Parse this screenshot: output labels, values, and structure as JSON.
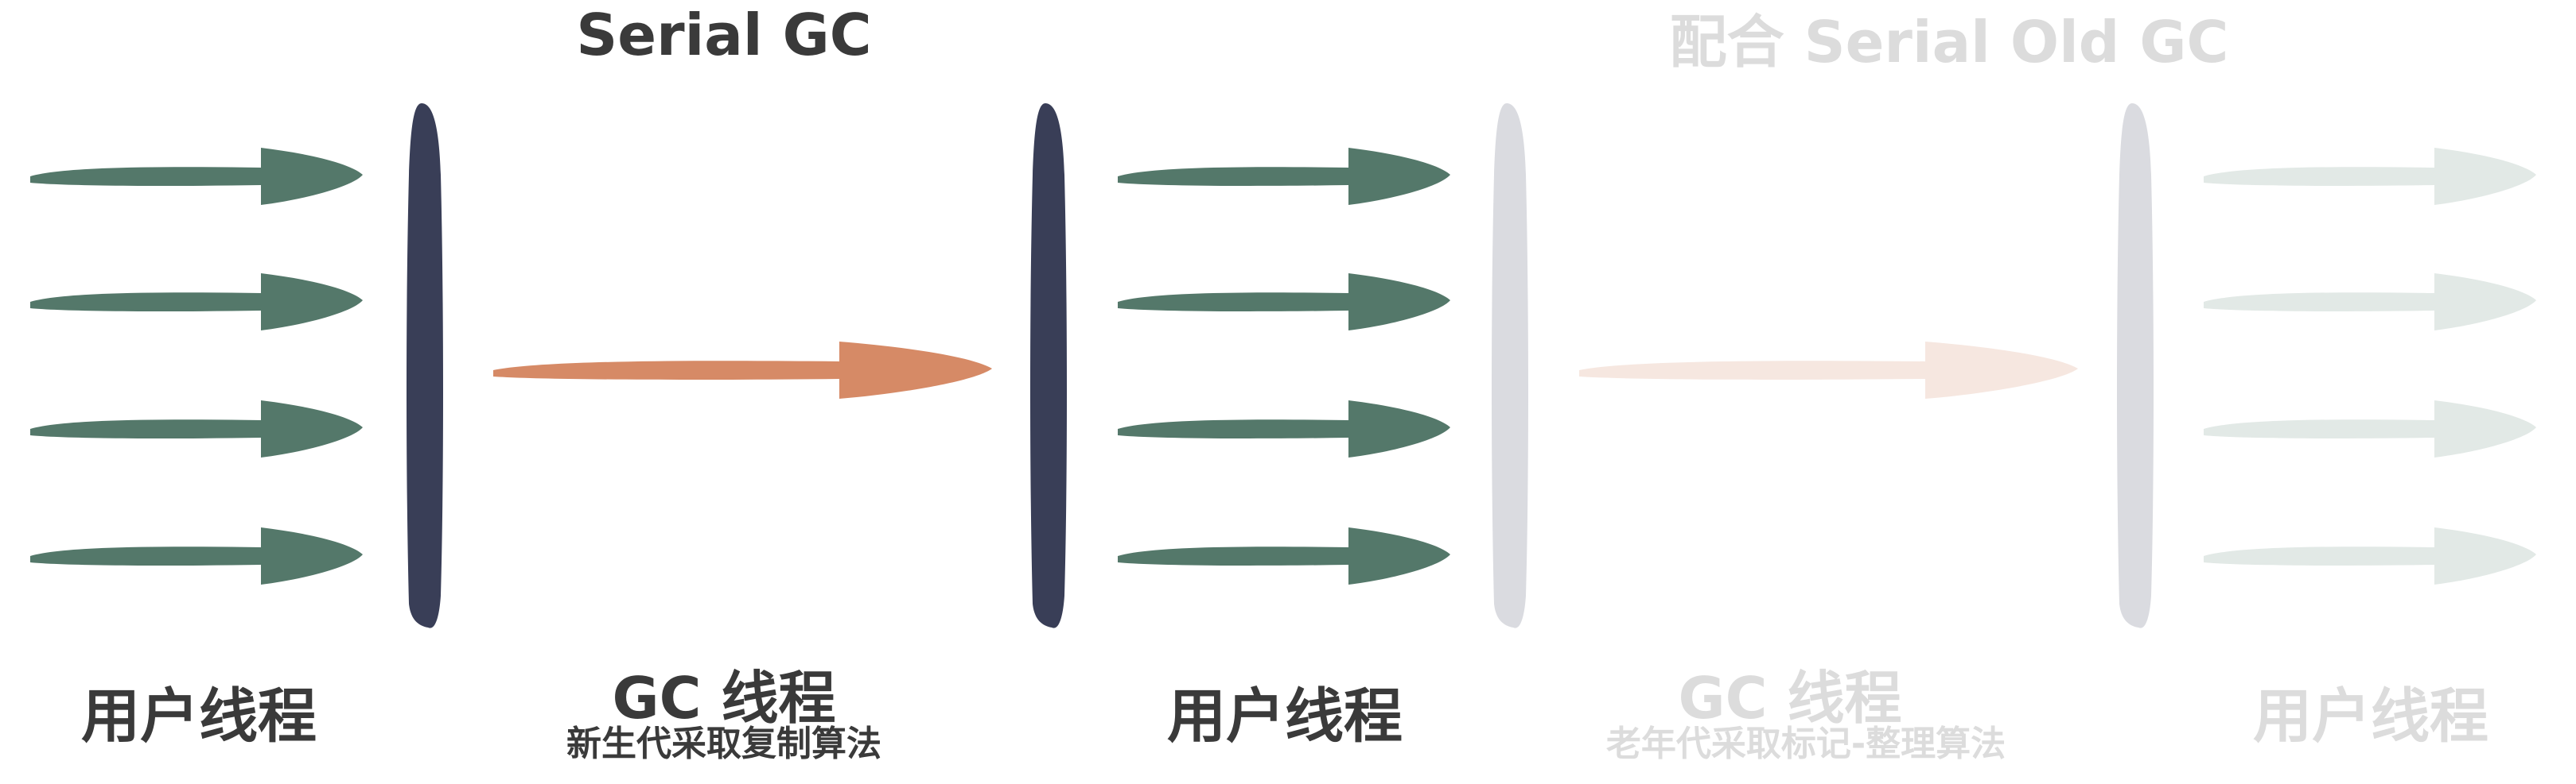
{
  "titles": {
    "serial": "Serial GC",
    "serial_old": "配合 Serial Old GC"
  },
  "labels": {
    "user_thread": "用户线程",
    "gc_thread": "GC 线程",
    "young_algo": "新生代采取复制算法",
    "old_algo": "老年代采取标记-整理算法"
  },
  "colors": {
    "text_dark": "#3a3a3a",
    "text_faded": "#dcdcdc",
    "user_arrow": "#54786a",
    "user_arrow_faded": "#e2e9e6",
    "gc_arrow": "#d68a66",
    "gc_arrow_faded": "#f6e7e0",
    "barrier": "#393e57",
    "barrier_faded": "#dadbe0"
  }
}
